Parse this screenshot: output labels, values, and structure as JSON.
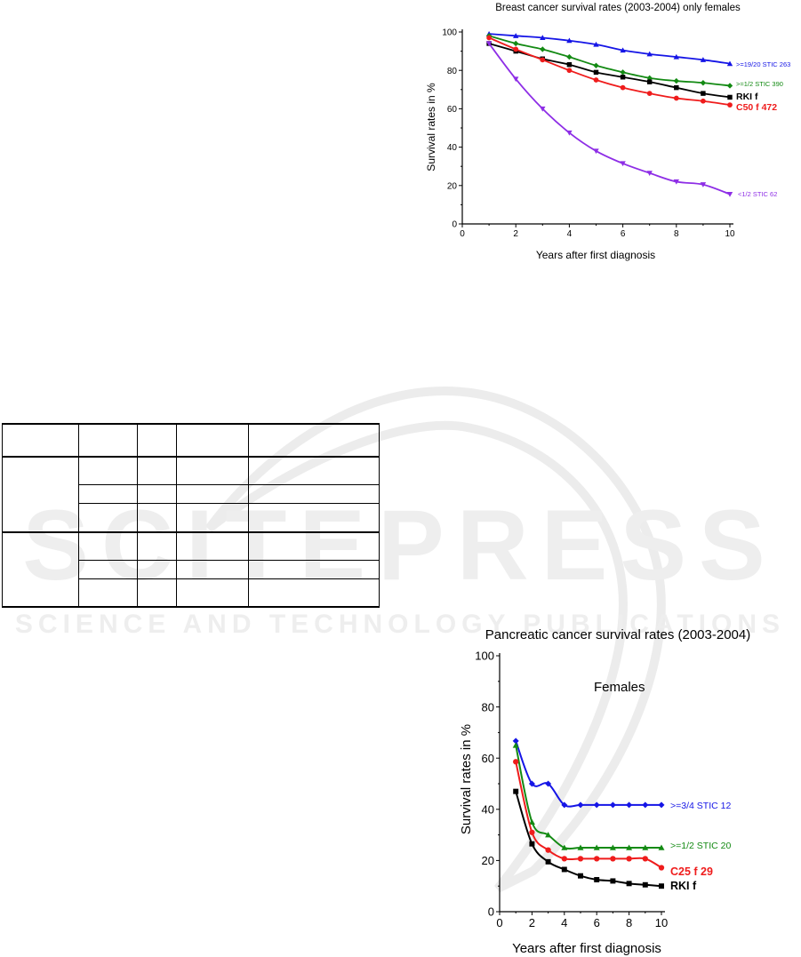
{
  "watermark": {
    "publisher_name": "SCITEPRESS",
    "tagline": "SCIENCE AND TECHNOLOGY PUBLICATIONS"
  },
  "colors": {
    "blue": "#1515e6",
    "green": "#138a13",
    "black": "#000000",
    "red": "#ef1c1c",
    "purple": "#8e2ee6"
  },
  "chart_data": [
    {
      "type": "line",
      "title": "Breast cancer survival rates (2003-2004) only females",
      "xlabel": "Years after first diagnosis",
      "ylabel": "Survival rates in %",
      "xlim": [
        0,
        10
      ],
      "ylim": [
        0,
        100
      ],
      "xticks": [
        "0",
        "2",
        "4",
        "6",
        "8",
        "10"
      ],
      "yticks": [
        "0",
        "20",
        "40",
        "60",
        "80",
        "100"
      ],
      "grid": false,
      "x": [
        1,
        2,
        3,
        4,
        5,
        6,
        7,
        8,
        9,
        10
      ],
      "series": [
        {
          "name": ">=19/20 STIC 263",
          "color": "#1515e6",
          "marker": "triangle-up",
          "label_style": "small",
          "values": [
            99,
            98,
            97,
            95.5,
            93.5,
            90.5,
            88.5,
            87,
            85.5,
            83.5
          ]
        },
        {
          "name": ">=1/2 STIC 390",
          "color": "#138a13",
          "marker": "diamond",
          "label_style": "small",
          "values": [
            98,
            94,
            91,
            87,
            82.5,
            79,
            76,
            74.5,
            73.5,
            72
          ]
        },
        {
          "name": "RKI f",
          "color": "#000000",
          "marker": "square",
          "label_style": "bold",
          "values": [
            94,
            90,
            86,
            83,
            79,
            76.5,
            74,
            71,
            68,
            66
          ]
        },
        {
          "name": "C50 f 472",
          "color": "#ef1c1c",
          "marker": "circle",
          "label_style": "bold",
          "values": [
            97,
            91,
            85.5,
            80,
            75,
            71,
            68,
            65.5,
            64,
            62
          ]
        },
        {
          "name": "<1/2 STIC 62",
          "color": "#8e2ee6",
          "marker": "triangle-down",
          "label_style": "small",
          "values": [
            94,
            75.5,
            60,
            47.5,
            38,
            31.5,
            26.5,
            22,
            20.5,
            15.5
          ]
        }
      ]
    },
    {
      "type": "line",
      "title": "Pancreatic cancer survival rates (2003-2004)",
      "annotation": "Females",
      "xlabel": "Years after first diagnosis",
      "ylabel": "Survival rates in %",
      "xlim": [
        0,
        10
      ],
      "ylim": [
        0,
        100
      ],
      "xticks": [
        "0",
        "2",
        "4",
        "6",
        "8",
        "10"
      ],
      "yticks": [
        "0",
        "20",
        "40",
        "60",
        "80",
        "100"
      ],
      "grid": false,
      "x": [
        1,
        2,
        3,
        4,
        5,
        6,
        7,
        8,
        9,
        10
      ],
      "series": [
        {
          "name": ">=3/4 STIC 12",
          "color": "#1515e6",
          "marker": "diamond",
          "label_style": "small",
          "values": [
            66.7,
            50,
            50,
            41.7,
            41.7,
            41.7,
            41.7,
            41.7,
            41.7,
            41.7
          ]
        },
        {
          "name": ">=1/2 STIC 20",
          "color": "#138a13",
          "marker": "triangle-up",
          "label_style": "small",
          "values": [
            65,
            35,
            30,
            25,
            25,
            25,
            25,
            25,
            25,
            25
          ]
        },
        {
          "name": "C25 f 29",
          "color": "#ef1c1c",
          "marker": "circle",
          "label_style": "bold",
          "values": [
            58.6,
            31,
            24.1,
            20.7,
            20.7,
            20.7,
            20.7,
            20.7,
            20.7,
            17.2
          ]
        },
        {
          "name": "RKI f",
          "color": "#000000",
          "marker": "square",
          "label_style": "bold",
          "values": [
            47,
            26.5,
            19.5,
            16.5,
            14,
            12.5,
            12,
            11,
            10.5,
            10
          ]
        }
      ]
    }
  ]
}
